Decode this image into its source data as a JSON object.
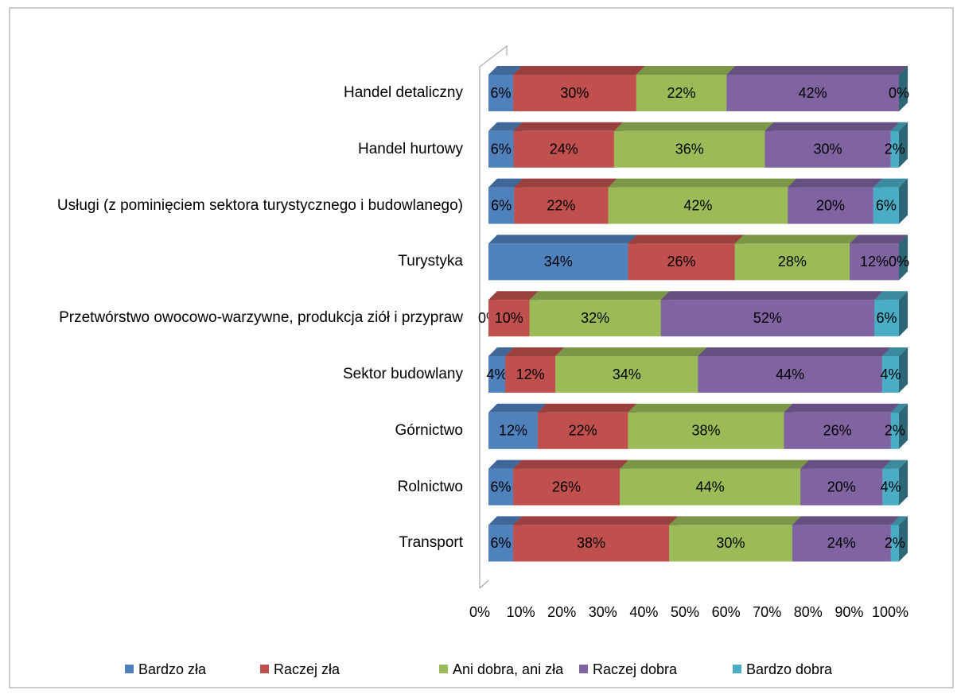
{
  "chart_data": {
    "type": "stacked_percent_bar",
    "orientation": "horizontal",
    "categories": [
      "Handel detaliczny",
      "Handel hurtowy",
      "Usługi (z pominięciem sektora turystycznego i budowlanego)",
      "Turystyka",
      "Przetwórstwo owocowo-warzywne, produkcja ziół i przypraw",
      "Sektor budowlany",
      "Górnictwo",
      "Rolnictwo",
      "Transport"
    ],
    "series": [
      {
        "name": "Bardzo zła",
        "color": "#4f81bd",
        "values": [
          6,
          6,
          6,
          34,
          0,
          4,
          12,
          6,
          6
        ],
        "value_labels": [
          "6%",
          "6%",
          "6%",
          "34%",
          "0%",
          "4%",
          "12%",
          "6%",
          "6%"
        ]
      },
      {
        "name": "Raczej zła",
        "color": "#c0504d",
        "values": [
          30,
          24,
          22,
          26,
          10,
          12,
          22,
          26,
          38
        ],
        "value_labels": [
          "30%",
          "24%",
          "22%",
          "26%",
          "10%",
          "12%",
          "22%",
          "26%",
          "38%"
        ]
      },
      {
        "name": "Ani dobra, ani zła",
        "color": "#9bbb59",
        "values": [
          22,
          36,
          42,
          28,
          32,
          34,
          38,
          44,
          30
        ],
        "value_labels": [
          "22%",
          "36%",
          "42%",
          "28%",
          "32%",
          "34%",
          "38%",
          "44%",
          "30%"
        ]
      },
      {
        "name": "Raczej dobra",
        "color": "#8064a2",
        "values": [
          42,
          30,
          20,
          12,
          52,
          44,
          26,
          20,
          24
        ],
        "value_labels": [
          "42%",
          "30%",
          "20%",
          "12%",
          "52%",
          "44%",
          "26%",
          "20%",
          "24%"
        ]
      },
      {
        "name": "Bardzo dobra",
        "color": "#4bacc6",
        "values": [
          0,
          2,
          6,
          0,
          6,
          4,
          2,
          4,
          2
        ],
        "value_labels": [
          "0%",
          "2%",
          "6%",
          "0%",
          "6%",
          "4%",
          "2%",
          "4%",
          "2%"
        ]
      }
    ],
    "xlim": [
      0,
      100
    ],
    "xticks": [
      {
        "value": 0,
        "label": "0%"
      },
      {
        "value": 10,
        "label": "10%"
      },
      {
        "value": 20,
        "label": "20%"
      },
      {
        "value": 30,
        "label": "30%"
      },
      {
        "value": 40,
        "label": "40%"
      },
      {
        "value": 50,
        "label": "50%"
      },
      {
        "value": 60,
        "label": "60%"
      },
      {
        "value": 70,
        "label": "70%"
      },
      {
        "value": 80,
        "label": "80%"
      },
      {
        "value": 90,
        "label": "90%"
      },
      {
        "value": 100,
        "label": "100%"
      }
    ],
    "legend": "bottom"
  }
}
